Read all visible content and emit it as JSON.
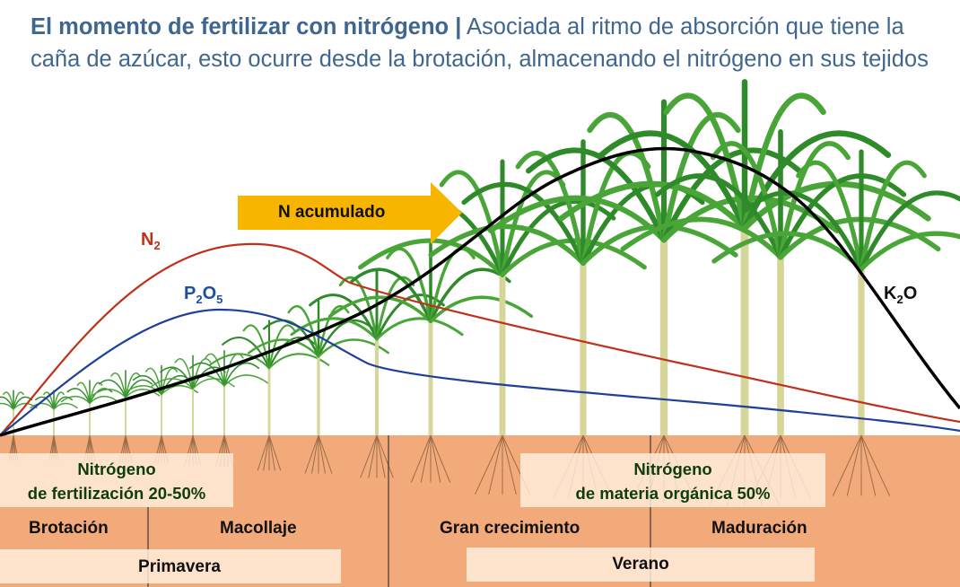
{
  "title": {
    "bold": "El momento de fertilizar con nitrógeno |",
    "rest": " Asociada al ritmo de absorción que tiene la caña de azúcar, esto ocurre desde la brotación, almacenando el nitrógeno en sus tejidos"
  },
  "arrow": {
    "label": "N acumulado",
    "color": "#f7b500"
  },
  "curves": [
    {
      "name": "N",
      "sub": "2",
      "after": "",
      "color": "#c0301a"
    },
    {
      "name": "P",
      "sub": "2",
      "after": "O",
      "sub2": "5",
      "color": "#1e3f9a"
    },
    {
      "name": "K",
      "sub": "2",
      "after": "O",
      "color": "#000000"
    }
  ],
  "soil": {
    "color": "#f2aa7a",
    "nitrogen_fertilization": {
      "line1": "Nitrógeno",
      "line2": "de fertilización 20-50%"
    },
    "nitrogen_organic": {
      "line1": "Nitrógeno",
      "line2": "de materia orgánica 50%"
    },
    "stages": [
      "Brotación",
      "Macollaje",
      "Gran crecimiento",
      "Maduración"
    ],
    "seasons": [
      "Primavera",
      "Verano"
    ]
  }
}
